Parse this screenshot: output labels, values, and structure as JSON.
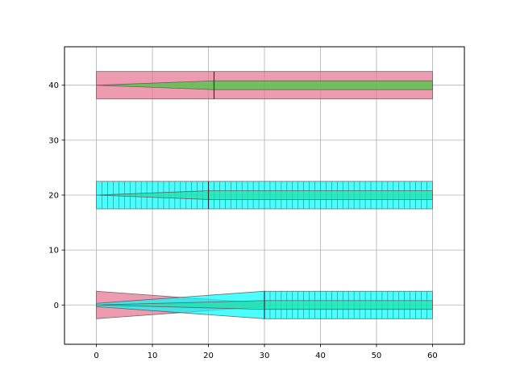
{
  "chart_data": {
    "type": "diagram",
    "title": "",
    "xlabel": "",
    "ylabel": "",
    "xlim": [
      -5.7,
      65.7
    ],
    "ylim": [
      -7.15,
      47.0
    ],
    "grid": true,
    "xticks": [
      0,
      10,
      20,
      30,
      40,
      50,
      60
    ],
    "yticks": [
      0,
      10,
      20,
      30,
      40
    ],
    "colors": {
      "pink": "#e5708f",
      "cyan": "#00ffff",
      "green": "#3ecf3e",
      "teal_mid": "#1fe0a6",
      "outline": "#5a4a4a",
      "grid": "#b0b0b0"
    },
    "structures": [
      {
        "name": "",
        "y_center": 40,
        "band": {
          "x": [
            0,
            60
          ],
          "y": [
            37.5,
            42.5
          ],
          "fill": "#e5708f",
          "divider_x": 21,
          "hatch_step": null
        },
        "taper": {
          "x": [
            0,
            21
          ],
          "y_start": [
            40,
            40
          ],
          "y_end": [
            39.2,
            40.8
          ],
          "fill": "#3ecf3e"
        },
        "core": {
          "x": [
            21,
            60
          ],
          "y": [
            39.2,
            40.8
          ],
          "fill": "#3ecf3e"
        }
      },
      {
        "name": "",
        "y_center": 20,
        "band": {
          "x": [
            0,
            60
          ],
          "y": [
            17.5,
            22.5
          ],
          "fill": "#00ffff",
          "divider_x": 20,
          "hatch_step": 1
        },
        "taper": {
          "x": [
            0,
            20
          ],
          "y_start": [
            20,
            20
          ],
          "y_end": [
            19.2,
            20.8
          ],
          "fill": "#1fe0a6"
        },
        "core": {
          "x": [
            20,
            60
          ],
          "y": [
            19.2,
            20.8
          ],
          "fill": "#1fe0a6"
        }
      },
      {
        "name": "",
        "y_center": 0,
        "pink_taper": {
          "x": [
            0,
            30
          ],
          "y_start": [
            -2.5,
            2.5
          ],
          "y_end": [
            -0.3,
            0.3
          ],
          "fill": "#e5708f"
        },
        "cyan_taper": {
          "x": [
            0,
            30
          ],
          "y_start": [
            -0.3,
            0.3
          ],
          "y_end": [
            -2.5,
            2.5
          ],
          "fill": "#00ffff"
        },
        "band": {
          "x": [
            30,
            60
          ],
          "y": [
            -2.5,
            2.5
          ],
          "fill": "#00ffff",
          "divider_x": 30,
          "hatch_step": 1
        },
        "core_taper": {
          "x": [
            0,
            30
          ],
          "y_start": [
            0,
            0
          ],
          "y_end": [
            -0.8,
            0.8
          ],
          "fill": "#1fe0a6"
        },
        "core": {
          "x": [
            30,
            60
          ],
          "y": [
            -0.8,
            0.8
          ],
          "fill": "#1fe0a6"
        }
      }
    ]
  }
}
